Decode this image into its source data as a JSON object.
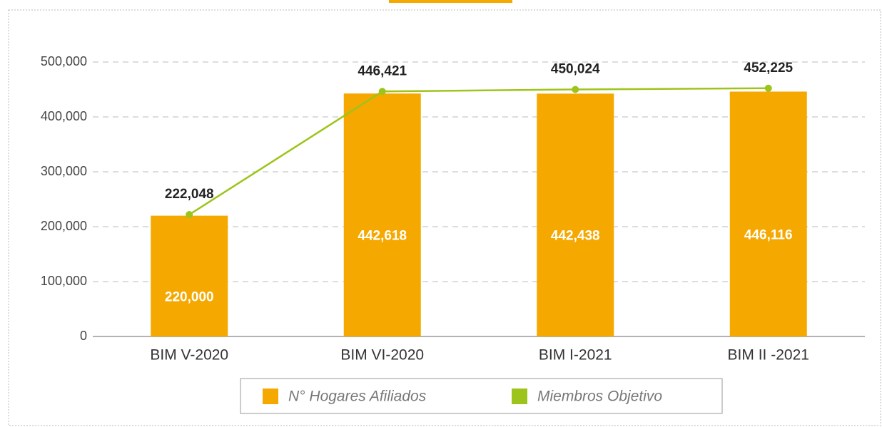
{
  "chart_data": {
    "type": "bar",
    "categories": [
      "BIM V-2020",
      "BIM VI-2020",
      "BIM I-2021",
      "BIM II -2021"
    ],
    "series": [
      {
        "name": "N° Hogares Afiliados",
        "type": "bar",
        "color": "#f5a800",
        "values": [
          220000,
          442618,
          442438,
          446116
        ],
        "value_labels": [
          "220,000",
          "442,618",
          "442,438",
          "446,116"
        ]
      },
      {
        "name": "Miembros Objetivo",
        "type": "line",
        "color": "#9dc41a",
        "values": [
          222048,
          446421,
          450024,
          452225
        ],
        "value_labels": [
          "222,048",
          "446,421",
          "450,024",
          "452,225"
        ]
      }
    ],
    "ylim": [
      0,
      500000
    ],
    "yticks": [
      0,
      {
        "value": 100000,
        "label": "100,000"
      },
      {
        "value": 200000,
        "label": "200,000"
      },
      {
        "value": 300000,
        "label": "300,000"
      },
      {
        "value": 400000,
        "label": "400,000"
      },
      {
        "value": 500000,
        "label": "500,000"
      }
    ],
    "grid": true,
    "legend": "bottom"
  }
}
